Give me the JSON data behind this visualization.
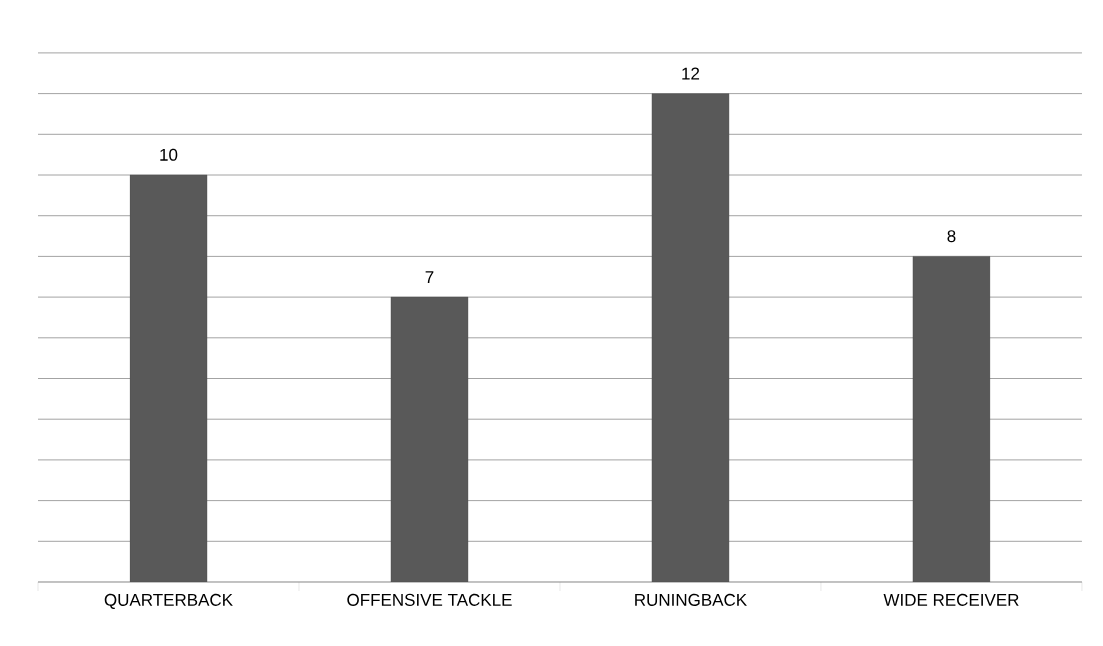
{
  "chart_data": {
    "type": "bar",
    "categories": [
      "QUARTERBACK",
      "OFFENSIVE TACKLE",
      "RUNINGBACK",
      "WIDE RECEIVER"
    ],
    "values": [
      10,
      7,
      12,
      8
    ],
    "color": "#595959",
    "data_labels": true,
    "relative": false,
    "grid": "y",
    "tick_labels": "x"
  }
}
